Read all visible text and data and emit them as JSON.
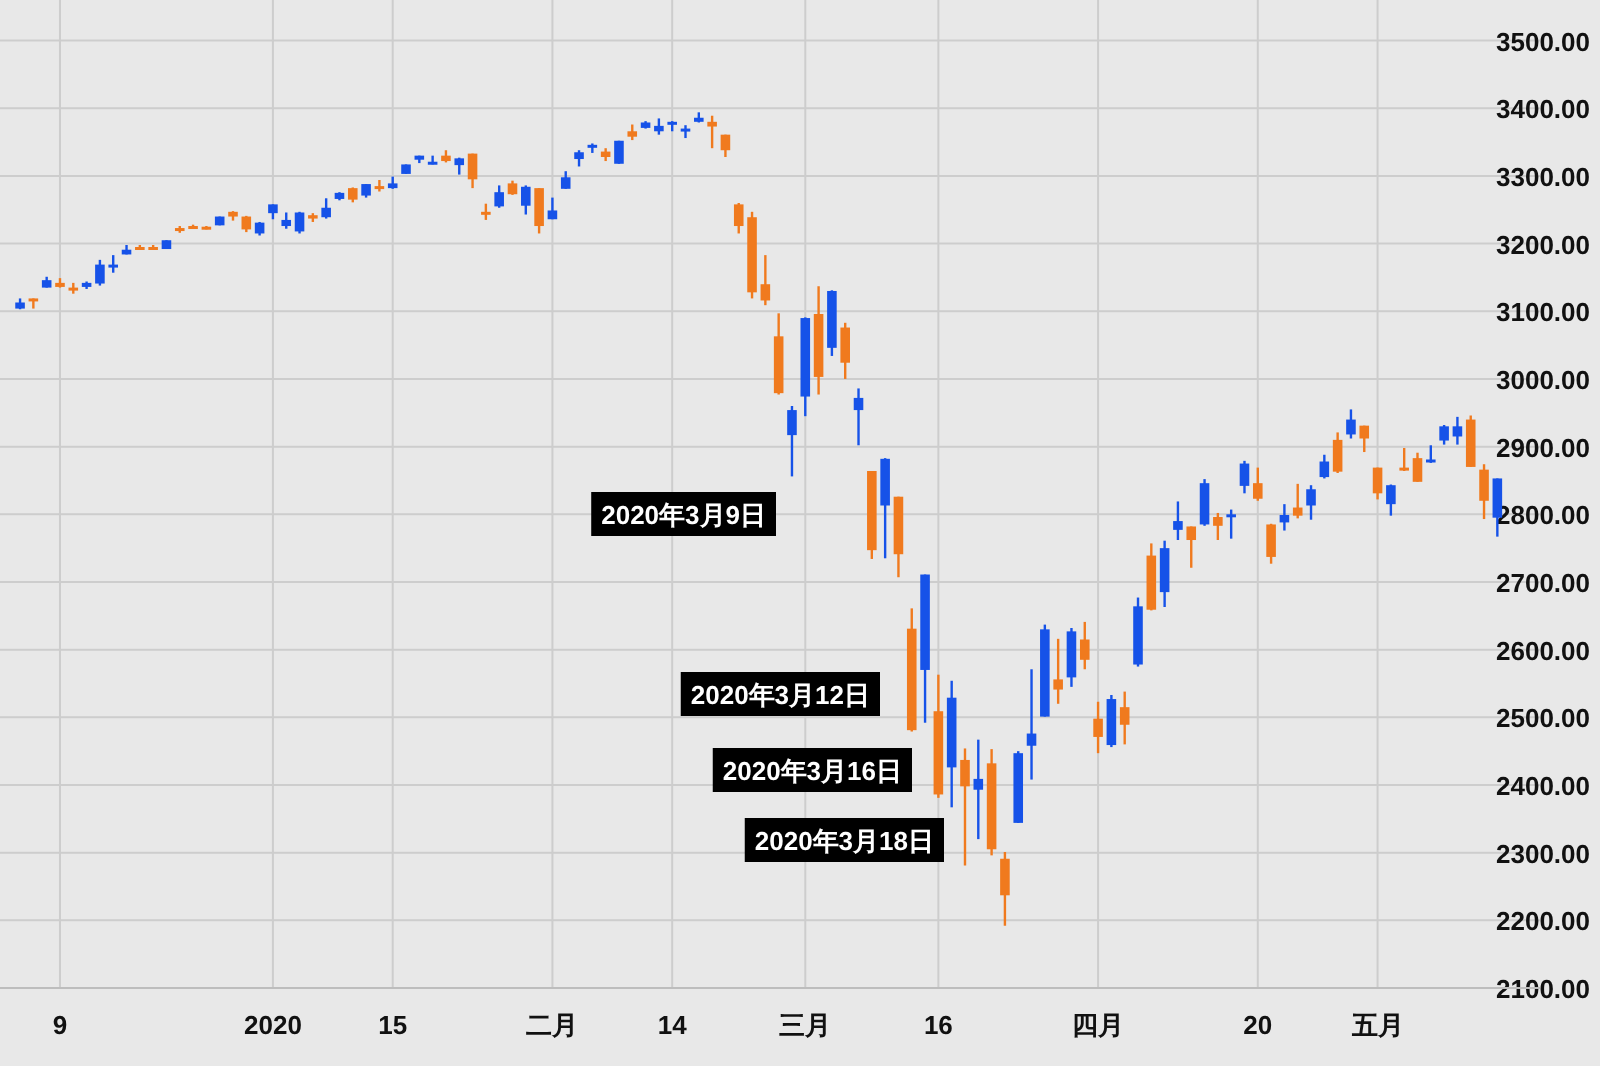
{
  "chart_data": {
    "type": "candlestick",
    "categories": [
      null,
      null,
      null,
      "9",
      null,
      null,
      null,
      null,
      null,
      null,
      null,
      null,
      null,
      null,
      null,
      null,
      null,
      null,
      null,
      "2020",
      null,
      null,
      null,
      null,
      null,
      null,
      null,
      null,
      "15",
      null,
      null,
      null,
      null,
      null,
      null,
      null,
      null,
      null,
      null,
      null,
      "二月",
      null,
      null,
      null,
      null,
      null,
      null,
      null,
      null,
      "14",
      null,
      null,
      null,
      null,
      null,
      null,
      null,
      null,
      null,
      "三月",
      null,
      null,
      null,
      null,
      null,
      null,
      null,
      null,
      null,
      "16",
      null,
      null,
      null,
      null,
      null,
      null,
      null,
      null,
      null,
      null,
      null,
      "四月",
      null,
      null,
      null,
      null,
      null,
      null,
      null,
      null,
      null,
      null,
      null,
      "20",
      null,
      null,
      null,
      null,
      null,
      null,
      null,
      null,
      "五月",
      null,
      null,
      null,
      null,
      null,
      null,
      null,
      null,
      null
    ],
    "ohlc": [
      [
        3104,
        3119,
        3103,
        3113
      ],
      [
        3119,
        3119,
        3104,
        3117
      ],
      [
        3135,
        3151,
        3135,
        3146
      ],
      [
        3142,
        3149,
        3135,
        3136
      ],
      [
        3135,
        3142,
        3126,
        3133
      ],
      [
        3136,
        3144,
        3133,
        3142
      ],
      [
        3141,
        3176,
        3138,
        3169
      ],
      [
        3167,
        3183,
        3157,
        3169
      ],
      [
        3184,
        3198,
        3184,
        3191
      ],
      [
        3195,
        3198,
        3191,
        3193
      ],
      [
        3195,
        3198,
        3191,
        3191
      ],
      [
        3192,
        3205,
        3192,
        3205
      ],
      [
        3223,
        3226,
        3216,
        3221
      ],
      [
        3226,
        3228,
        3222,
        3224
      ],
      [
        3225,
        3226,
        3221,
        3223
      ],
      [
        3227,
        3240,
        3227,
        3240
      ],
      [
        3247,
        3248,
        3234,
        3240
      ],
      [
        3240,
        3241,
        3217,
        3221
      ],
      [
        3215,
        3232,
        3212,
        3231
      ],
      [
        3245,
        3258,
        3236,
        3258
      ],
      [
        3226,
        3246,
        3222,
        3235
      ],
      [
        3218,
        3247,
        3215,
        3246
      ],
      [
        3242,
        3245,
        3232,
        3237
      ],
      [
        3239,
        3267,
        3237,
        3253
      ],
      [
        3266,
        3276,
        3264,
        3275
      ],
      [
        3282,
        3283,
        3261,
        3265
      ],
      [
        3271,
        3288,
        3268,
        3288
      ],
      [
        3285,
        3294,
        3277,
        3283
      ],
      [
        3282,
        3299,
        3281,
        3289
      ],
      [
        3303,
        3317,
        3303,
        3317
      ],
      [
        3324,
        3330,
        3319,
        3330
      ],
      [
        3321,
        3330,
        3317,
        3321
      ],
      [
        3330,
        3338,
        3320,
        3322
      ],
      [
        3316,
        3327,
        3302,
        3326
      ],
      [
        3333,
        3333,
        3282,
        3295
      ],
      [
        3247,
        3259,
        3235,
        3244
      ],
      [
        3255,
        3286,
        3253,
        3276
      ],
      [
        3289,
        3293,
        3272,
        3273
      ],
      [
        3256,
        3286,
        3243,
        3284
      ],
      [
        3282,
        3282,
        3215,
        3226
      ],
      [
        3236,
        3268,
        3236,
        3249
      ],
      [
        3281,
        3307,
        3281,
        3298
      ],
      [
        3325,
        3338,
        3314,
        3335
      ],
      [
        3345,
        3348,
        3334,
        3346
      ],
      [
        3336,
        3341,
        3322,
        3328
      ],
      [
        3318,
        3352,
        3318,
        3352
      ],
      [
        3366,
        3376,
        3353,
        3358
      ],
      [
        3371,
        3381,
        3370,
        3379
      ],
      [
        3366,
        3385,
        3361,
        3374
      ],
      [
        3378,
        3381,
        3366,
        3380
      ],
      [
        3369,
        3375,
        3356,
        3370
      ],
      [
        3380,
        3394,
        3379,
        3386
      ],
      [
        3380,
        3389,
        3341,
        3373
      ],
      [
        3361,
        3361,
        3328,
        3338
      ],
      [
        3258,
        3260,
        3215,
        3226
      ],
      [
        3239,
        3247,
        3119,
        3128
      ],
      [
        3140,
        3183,
        3109,
        3116
      ],
      [
        3063,
        3097,
        2977,
        2979
      ],
      [
        2917,
        2960,
        2856,
        2954
      ],
      [
        2974,
        3091,
        2945,
        3090
      ],
      [
        3096,
        3137,
        2977,
        3003
      ],
      [
        3046,
        3131,
        3034,
        3130
      ],
      [
        3076,
        3083,
        3000,
        3024
      ],
      [
        2954,
        2986,
        2902,
        2972
      ],
      [
        2864,
        2864,
        2734,
        2747
      ],
      [
        2813,
        2883,
        2735,
        2882
      ],
      [
        2826,
        2826,
        2707,
        2741
      ],
      [
        2631,
        2661,
        2479,
        2481
      ],
      [
        2570,
        2711,
        2492,
        2711
      ],
      [
        2509,
        2563,
        2381,
        2386
      ],
      [
        2426,
        2554,
        2367,
        2529
      ],
      [
        2437,
        2454,
        2281,
        2398
      ],
      [
        2393,
        2467,
        2320,
        2409
      ],
      [
        2432,
        2453,
        2296,
        2305
      ],
      [
        2291,
        2301,
        2192,
        2237
      ],
      [
        2344,
        2450,
        2344,
        2447
      ],
      [
        2458,
        2571,
        2408,
        2476
      ],
      [
        2501,
        2637,
        2501,
        2630
      ],
      [
        2556,
        2616,
        2520,
        2541
      ],
      [
        2559,
        2632,
        2545,
        2627
      ],
      [
        2615,
        2641,
        2571,
        2585
      ],
      [
        2498,
        2523,
        2447,
        2471
      ],
      [
        2459,
        2533,
        2456,
        2527
      ],
      [
        2515,
        2538,
        2460,
        2489
      ],
      [
        2578,
        2677,
        2575,
        2664
      ],
      [
        2739,
        2757,
        2658,
        2659
      ],
      [
        2685,
        2761,
        2663,
        2750
      ],
      [
        2777,
        2819,
        2762,
        2790
      ],
      [
        2782,
        2782,
        2721,
        2762
      ],
      [
        2785,
        2852,
        2783,
        2846
      ],
      [
        2796,
        2802,
        2762,
        2783
      ],
      [
        2799,
        2807,
        2764,
        2800
      ],
      [
        2842,
        2879,
        2831,
        2875
      ],
      [
        2846,
        2869,
        2820,
        2823
      ],
      [
        2785,
        2786,
        2727,
        2737
      ],
      [
        2788,
        2815,
        2776,
        2799
      ],
      [
        2810,
        2845,
        2794,
        2798
      ],
      [
        2813,
        2843,
        2792,
        2837
      ],
      [
        2855,
        2888,
        2853,
        2878
      ],
      [
        2910,
        2921,
        2861,
        2863
      ],
      [
        2918,
        2955,
        2912,
        2940
      ],
      [
        2931,
        2931,
        2892,
        2912
      ],
      [
        2869,
        2869,
        2822,
        2831
      ],
      [
        2815,
        2844,
        2798,
        2843
      ],
      [
        2869,
        2898,
        2864,
        2868
      ],
      [
        2883,
        2891,
        2848,
        2848
      ],
      [
        2878,
        2902,
        2876,
        2881
      ],
      [
        2909,
        2932,
        2903,
        2930
      ],
      [
        2915,
        2944,
        2903,
        2930
      ],
      [
        2940,
        2946,
        2870,
        2870
      ],
      [
        2866,
        2874,
        2793,
        2820
      ],
      [
        2795,
        2853,
        2767,
        2853
      ]
    ],
    "ylim": [
      2100,
      3560
    ],
    "yticks": [
      {
        "value": 2100,
        "label": "2100.00"
      },
      {
        "value": 2200,
        "label": "2200.00"
      },
      {
        "value": 2300,
        "label": "2300.00"
      },
      {
        "value": 2400,
        "label": "2400.00"
      },
      {
        "value": 2500,
        "label": "2500.00"
      },
      {
        "value": 2600,
        "label": "2600.00"
      },
      {
        "value": 2700,
        "label": "2700.00"
      },
      {
        "value": 2800,
        "label": "2800.00"
      },
      {
        "value": 2900,
        "label": "2900.00"
      },
      {
        "value": 3000,
        "label": "3000.00"
      },
      {
        "value": 3100,
        "label": "3100.00"
      },
      {
        "value": 3200,
        "label": "3200.00"
      },
      {
        "value": 3300,
        "label": "3300.00"
      },
      {
        "value": 3400,
        "label": "3400.00"
      },
      {
        "value": 3500,
        "label": "3500.00"
      }
    ],
    "grid": true,
    "annotations": [
      "2020年3月9日",
      "2020年3月12日",
      "2020年3月16日",
      "2020年3月18日"
    ]
  }
}
